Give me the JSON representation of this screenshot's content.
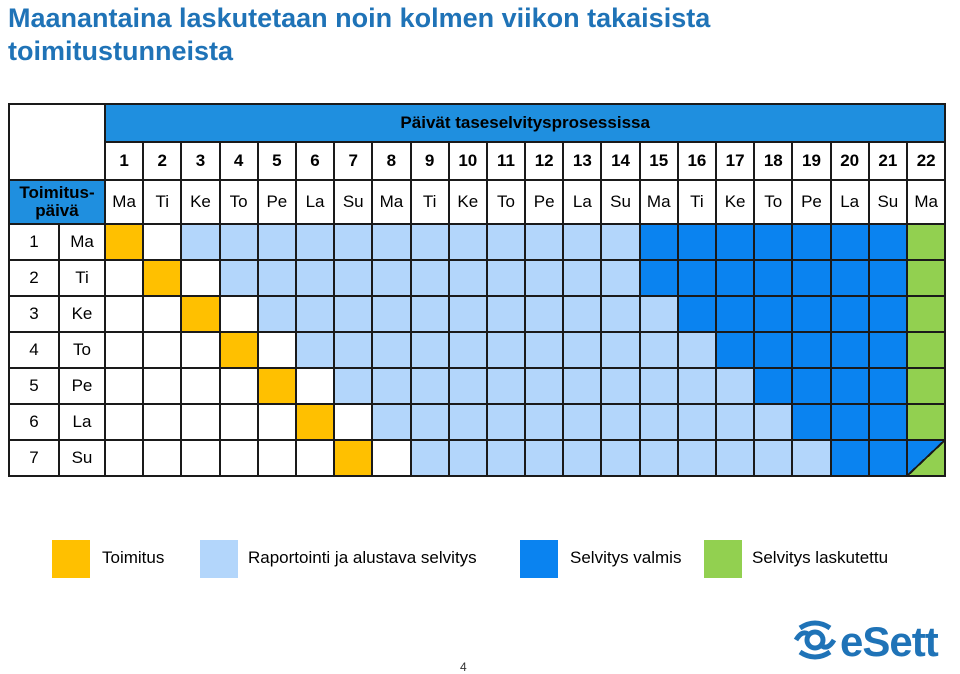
{
  "title": {
    "line1": "Maanantaina laskutetaan noin kolmen viikon takaisista",
    "line2": "toimitustunneista"
  },
  "table": {
    "header_title": "Päivät taseselvitysprosessissa",
    "corner_label_line1": "Toimitus-",
    "corner_label_line2": "päivä",
    "day_numbers": [
      "1",
      "2",
      "3",
      "4",
      "5",
      "6",
      "7",
      "8",
      "9",
      "10",
      "11",
      "12",
      "13",
      "14",
      "15",
      "16",
      "17",
      "18",
      "19",
      "20",
      "21",
      "22"
    ],
    "weekdays": [
      "Ma",
      "Ti",
      "Ke",
      "To",
      "Pe",
      "La",
      "Su",
      "Ma",
      "Ti",
      "Ke",
      "To",
      "Pe",
      "La",
      "Su",
      "Ma",
      "Ti",
      "Ke",
      "To",
      "Pe",
      "La",
      "Su",
      "Ma"
    ],
    "rows": [
      {
        "num": "1",
        "day": "Ma",
        "cells": [
          "T",
          "W",
          "R",
          "R",
          "R",
          "R",
          "R",
          "R",
          "R",
          "R",
          "R",
          "R",
          "R",
          "R",
          "S",
          "S",
          "S",
          "S",
          "S",
          "S",
          "S",
          "L"
        ]
      },
      {
        "num": "2",
        "day": "Ti",
        "cells": [
          "W",
          "T",
          "W",
          "R",
          "R",
          "R",
          "R",
          "R",
          "R",
          "R",
          "R",
          "R",
          "R",
          "R",
          "S",
          "S",
          "S",
          "S",
          "S",
          "S",
          "S",
          "L"
        ]
      },
      {
        "num": "3",
        "day": "Ke",
        "cells": [
          "W",
          "W",
          "T",
          "W",
          "R",
          "R",
          "R",
          "R",
          "R",
          "R",
          "R",
          "R",
          "R",
          "R",
          "R",
          "S",
          "S",
          "S",
          "S",
          "S",
          "S",
          "L"
        ]
      },
      {
        "num": "4",
        "day": "To",
        "cells": [
          "W",
          "W",
          "W",
          "T",
          "W",
          "R",
          "R",
          "R",
          "R",
          "R",
          "R",
          "R",
          "R",
          "R",
          "R",
          "R",
          "S",
          "S",
          "S",
          "S",
          "S",
          "L"
        ]
      },
      {
        "num": "5",
        "day": "Pe",
        "cells": [
          "W",
          "W",
          "W",
          "W",
          "T",
          "W",
          "R",
          "R",
          "R",
          "R",
          "R",
          "R",
          "R",
          "R",
          "R",
          "R",
          "R",
          "S",
          "S",
          "S",
          "S",
          "L"
        ]
      },
      {
        "num": "6",
        "day": "La",
        "cells": [
          "W",
          "W",
          "W",
          "W",
          "W",
          "T",
          "W",
          "R",
          "R",
          "R",
          "R",
          "R",
          "R",
          "R",
          "R",
          "R",
          "R",
          "R",
          "S",
          "S",
          "S",
          "L"
        ]
      },
      {
        "num": "7",
        "day": "Su",
        "cells": [
          "W",
          "W",
          "W",
          "W",
          "W",
          "W",
          "T",
          "W",
          "R",
          "R",
          "R",
          "R",
          "R",
          "R",
          "R",
          "R",
          "R",
          "R",
          "R",
          "S",
          "S",
          "X"
        ]
      }
    ]
  },
  "colors": {
    "toimitus": "#ffc000",
    "raportointi": "#b3d6fb",
    "selvitys_valmis": "#0a83f0",
    "laskutettu": "#92d050",
    "header": "#1f8fdf",
    "title": "#1f73b7"
  },
  "legend": [
    {
      "label": "Toimitus",
      "key": "toimitus"
    },
    {
      "label": "Raportointi ja alustava selvitys",
      "key": "raportointi"
    },
    {
      "label": "Selvitys valmis",
      "key": "selvitys_valmis"
    },
    {
      "label": "Selvitys laskutettu",
      "key": "laskutettu"
    }
  ],
  "page_number": "4",
  "logo": {
    "text": "eSett",
    "icon": "esett-logo-icon"
  }
}
